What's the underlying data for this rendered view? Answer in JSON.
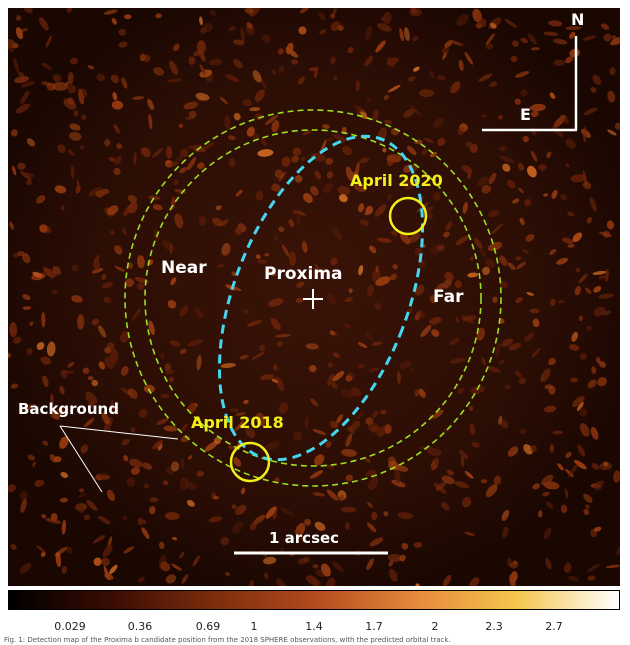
{
  "image": {
    "compass_north": "N",
    "compass_east": "E",
    "label_near": "Near",
    "label_far": "Far",
    "label_target": "Proxima",
    "label_background": "Background",
    "label_epoch_1": "April 2018",
    "label_epoch_2": "April 2020",
    "scale_bar_label": "1 arcsec"
  },
  "colorbar": {
    "ticks": [
      "0.029",
      "0.36",
      "0.69",
      "1",
      "1.4",
      "1.7",
      "2",
      "2.3",
      "2.7"
    ],
    "colors": [
      "#000000",
      "#3a0c03",
      "#7a2c0c",
      "#b24a1d",
      "#e6893a",
      "#f5c64d",
      "#ffffff"
    ]
  },
  "colors": {
    "ring": "#9de020",
    "orbit": "#44d8f0",
    "marker": "#f2ee1a",
    "text": "#ffffff"
  },
  "caption": "Fig. 1: Detection map of the Proxima b candidate position from the 2018 SPHERE observations, with the predicted orbital track."
}
